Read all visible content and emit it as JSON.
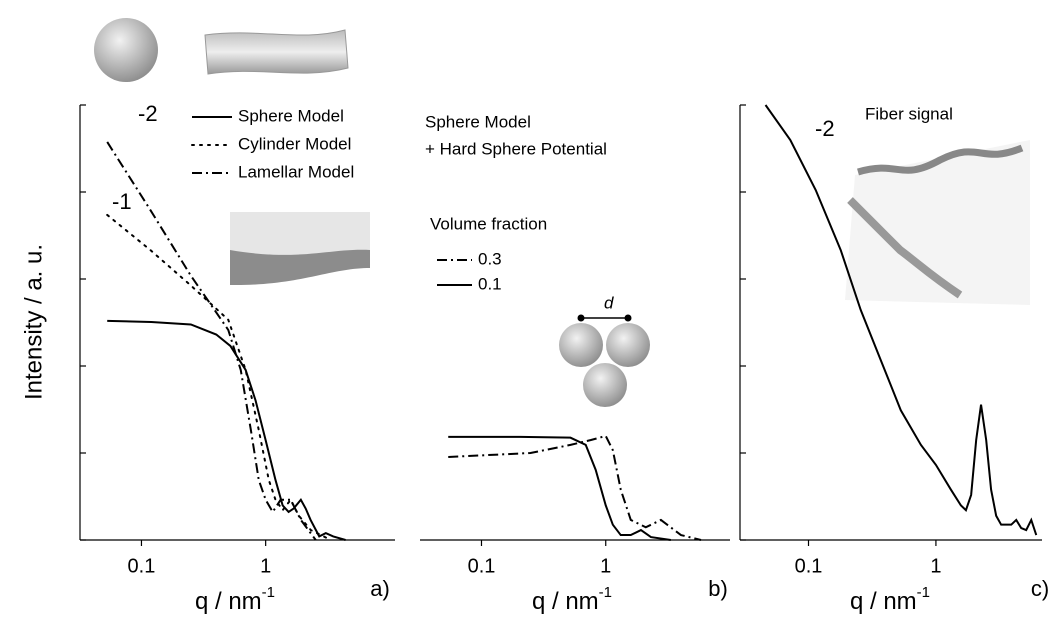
{
  "chart_data": [
    {
      "type": "line",
      "ylabel": "Intensity / a. u.",
      "xlabel": "q / nm",
      "xlabel_superscript": "-1",
      "panel_label": "a)",
      "log_x": true,
      "log_y": true,
      "xlim": [
        0.032,
        11
      ],
      "ylim": [
        1e-05,
        1
      ],
      "xticks": [
        0.1,
        1
      ],
      "yticks": [
        1e-05,
        0.0001,
        0.001,
        0.01,
        0.1,
        1
      ],
      "annotations": [
        "-2",
        "-1"
      ],
      "series": [
        {
          "name": "Sphere Model",
          "color": "#000000",
          "style": "solid",
          "x": [
            0.053,
            0.12,
            0.25,
            0.4,
            0.52,
            0.69,
            0.83,
            1.0,
            1.2,
            1.37,
            1.53,
            1.68,
            1.92,
            2.1,
            2.3,
            2.7,
            3.05,
            3.5,
            4.4
          ],
          "values": [
            0.0033,
            0.0032,
            0.003,
            0.0023,
            0.0017,
            0.0009,
            0.0004,
            0.00014,
            4.9e-05,
            2.5e-05,
            2.1e-05,
            2.3e-05,
            2.9e-05,
            2.3e-05,
            1.7e-05,
            1.1e-05,
            1.2e-05,
            1.1e-05,
            1e-05
          ]
        },
        {
          "name": "Cylinder Model",
          "color": "#000000",
          "style": "dotted",
          "x": [
            0.053,
            0.118,
            0.248,
            0.5,
            0.69,
            0.88,
            1.06,
            1.2,
            1.37,
            1.59,
            1.85,
            2.31,
            3.35
          ],
          "values": [
            0.0545,
            0.0215,
            0.0085,
            0.0034,
            0.0009,
            0.000184,
            4.9e-05,
            2.9e-05,
            2.2e-05,
            2.9e-05,
            1.9e-05,
            1.3e-05,
            1e-05
          ]
        },
        {
          "name": "Lamellar Model",
          "color": "#000000",
          "style": "dashdot",
          "x": [
            0.053,
            0.118,
            0.248,
            0.5,
            0.63,
            0.76,
            0.88,
            1.0,
            1.14,
            1.32,
            1.59,
            1.92,
            2.53
          ],
          "values": [
            0.376,
            0.062,
            0.0111,
            0.0026,
            0.0009,
            0.000184,
            4.9e-05,
            2.9e-05,
            2.1e-05,
            2.9e-05,
            2.9e-05,
            1.7e-05,
            1e-05
          ]
        }
      ]
    },
    {
      "type": "line",
      "xlabel": "q / nm",
      "xlabel_superscript": "-1",
      "panel_label": "b)",
      "log_x": true,
      "log_y": true,
      "xlim": [
        0.032,
        10
      ],
      "ylim": [
        1e-05,
        1
      ],
      "xticks": [
        0.1,
        1
      ],
      "annotations": [
        "Sphere Model",
        "+ Hard Sphere Potential",
        "d"
      ],
      "legend_title": "Volume fraction",
      "series": [
        {
          "name": "0.3",
          "color": "#000000",
          "style": "dashdot",
          "x": [
            0.054,
            0.248,
            0.52,
            0.76,
            1.0,
            1.14,
            1.32,
            1.59,
            2.1,
            2.78,
            4.03,
            5.84
          ],
          "values": [
            9e-05,
            0.0001,
            0.000124,
            0.000141,
            0.000157,
            0.000108,
            3.8e-05,
            1.7e-05,
            1.4e-05,
            1.7e-05,
            1.14e-05,
            1e-05
          ]
        },
        {
          "name": "0.1",
          "color": "#000000",
          "style": "solid",
          "x": [
            0.054,
            0.206,
            0.52,
            0.69,
            0.83,
            1.0,
            1.14,
            1.32,
            1.59,
            1.92,
            2.31,
            3.34
          ],
          "values": [
            0.000153,
            0.000153,
            0.00015,
            0.000124,
            6.4e-05,
            2.5e-05,
            1.5e-05,
            1.14e-05,
            1.14e-05,
            1.3e-05,
            1.08e-05,
            1e-05
          ]
        }
      ]
    },
    {
      "type": "line",
      "xlabel": "q / nm",
      "xlabel_superscript": "-1",
      "panel_label": "c)",
      "log_x": true,
      "log_y": true,
      "xlim": [
        0.029,
        6.8
      ],
      "ylim": [
        1e-05,
        1
      ],
      "xticks": [
        0.1,
        1
      ],
      "yticks": [
        1e-05,
        0.0001,
        0.001,
        0.01,
        0.1,
        1
      ],
      "annotations": [
        "-2",
        "Fiber signal"
      ],
      "series": [
        {
          "name": "Fiber",
          "color": "#000000",
          "style": "solid",
          "x": [
            0.046,
            0.072,
            0.114,
            0.179,
            0.257,
            0.369,
            0.53,
            0.762,
            1.0,
            1.31,
            1.57,
            1.72,
            1.89,
            2.07,
            2.26,
            2.48,
            2.71,
            2.97,
            3.25,
            3.9,
            4.27,
            4.67,
            5.11,
            5.6,
            6.13
          ],
          "values": [
            1,
            0.396,
            0.105,
            0.0215,
            0.0044,
            0.00117,
            0.00031,
            0.000124,
            7.3e-05,
            3.8e-05,
            2.5e-05,
            2.2e-05,
            3.3e-05,
            0.000141,
            0.00036,
            0.000141,
            3.8e-05,
            1.9e-05,
            1.5e-05,
            1.5e-05,
            1.7e-05,
            1.37e-05,
            1.3e-05,
            1.7e-05,
            1.14e-05
          ]
        }
      ]
    }
  ]
}
